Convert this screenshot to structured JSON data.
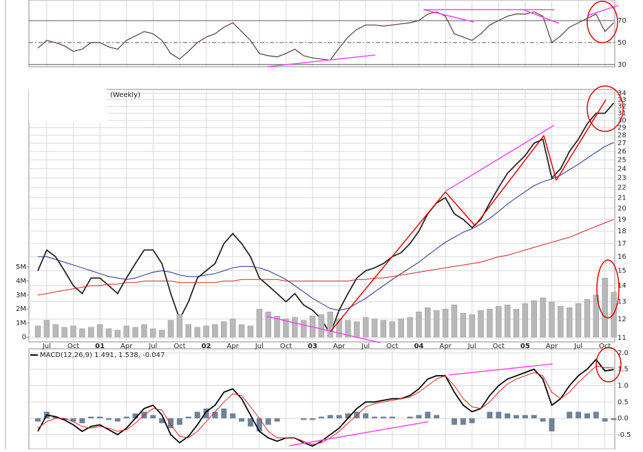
{
  "chart_data": [
    {
      "type": "line",
      "ylim": [
        28,
        88.75
      ],
      "yticks": [
        30,
        50,
        70
      ],
      "color": "#5a3535",
      "values": [
        45,
        52,
        50,
        47,
        42,
        44,
        50,
        50,
        46,
        44,
        52,
        56,
        60,
        58,
        52,
        40,
        35,
        42,
        50,
        55,
        58,
        64,
        68,
        60,
        52,
        40,
        38,
        37,
        40,
        44,
        38,
        36,
        35,
        34,
        45,
        55,
        62,
        66,
        66,
        65,
        66,
        67,
        68,
        70,
        76,
        78,
        74,
        58,
        55,
        52,
        58,
        66,
        70,
        74,
        76,
        76,
        78,
        74,
        50,
        56,
        64,
        68,
        72,
        76,
        60,
        68
      ]
    },
    {
      "type": "line",
      "log": true,
      "annotation": "(Weekly)",
      "ylim": [
        10.8,
        34.6
      ],
      "yticks": [
        11,
        12,
        13,
        14,
        15,
        16,
        17,
        18,
        19,
        20,
        21,
        22,
        23,
        24,
        25,
        26,
        27,
        28,
        29,
        30,
        31,
        32,
        33,
        34
      ],
      "categories": [
        null,
        "Jul",
        null,
        null,
        "Oct",
        null,
        null,
        "01",
        null,
        null,
        "Apr",
        null,
        null,
        "Jul",
        null,
        null,
        "Oct",
        null,
        null,
        "02",
        null,
        null,
        "Apr",
        null,
        null,
        "Jul",
        null,
        null,
        "Oct",
        null,
        null,
        "03",
        null,
        null,
        "Apr",
        null,
        null,
        "Jul",
        null,
        null,
        "Oct",
        null,
        null,
        "04",
        null,
        null,
        "Apr",
        null,
        null,
        "Jul",
        null,
        null,
        "Oct",
        null,
        null,
        "05",
        null,
        null,
        "Apr",
        null,
        null,
        "Jul",
        null,
        null,
        "Oct",
        null
      ],
      "series": [
        {
          "color": "#222222",
          "values": [
            15,
            16.5,
            16,
            15,
            14,
            13.5,
            14.5,
            14.5,
            14,
            13.5,
            14.5,
            15.5,
            16.5,
            16.5,
            15.5,
            13.5,
            12,
            13,
            14.5,
            15,
            15.5,
            17,
            17.8,
            17,
            16,
            14.5,
            14,
            13.5,
            13,
            13.5,
            12.8,
            12.5,
            12,
            11.2,
            12.5,
            13.5,
            14.5,
            15,
            15.2,
            15.5,
            16,
            16.3,
            17,
            18,
            19.5,
            20.5,
            21,
            19.5,
            19,
            18.3,
            19,
            20.5,
            22,
            23.5,
            24.5,
            25.5,
            27,
            27.5,
            23,
            24,
            26,
            27.5,
            29.5,
            31,
            31,
            32.5
          ]
        },
        {
          "color": "#1a2a8a",
          "values": [
            16,
            16,
            15.8,
            15.6,
            15.4,
            15.2,
            15,
            14.8,
            14.6,
            14.5,
            14.4,
            14.5,
            14.7,
            14.9,
            15,
            14.9,
            14.7,
            14.6,
            14.6,
            14.7,
            14.8,
            15,
            15.2,
            15.3,
            15.3,
            15.2,
            15,
            14.7,
            14.4,
            14,
            13.6,
            13.2,
            12.9,
            12.6,
            12.5,
            12.6,
            12.9,
            13.2,
            13.6,
            14,
            14.4,
            14.8,
            15.2,
            15.6,
            16.1,
            16.6,
            17.1,
            17.5,
            17.9,
            18.2,
            18.6,
            19.1,
            19.7,
            20.4,
            21,
            21.6,
            22.2,
            22.6,
            22.9,
            23.3,
            23.9,
            24.5,
            25.2,
            25.9,
            26.6,
            27.1
          ]
        },
        {
          "color": "#d42020",
          "values": [
            13.4,
            13.5,
            13.6,
            13.7,
            13.8,
            13.9,
            14,
            14,
            14.1,
            14.1,
            14.2,
            14.2,
            14.3,
            14.3,
            14.3,
            14.3,
            14.2,
            14.2,
            14.2,
            14.2,
            14.2,
            14.3,
            14.3,
            14.4,
            14.4,
            14.4,
            14.4,
            14.4,
            14.3,
            14.3,
            14.3,
            14.3,
            14.3,
            14.3,
            14.3,
            14.3,
            14.4,
            14.4,
            14.5,
            14.5,
            14.6,
            14.7,
            14.8,
            14.9,
            15,
            15.1,
            15.2,
            15.3,
            15.4,
            15.5,
            15.6,
            15.8,
            16,
            16.1,
            16.3,
            16.5,
            16.7,
            16.9,
            17.1,
            17.3,
            17.5,
            17.8,
            18.1,
            18.4,
            18.7,
            19
          ]
        }
      ]
    },
    {
      "type": "bar",
      "color": "#b8b8b8",
      "ylim": [
        0,
        5000000
      ],
      "yticks": [
        0,
        {
          "value": 1000000,
          "label": "1M"
        },
        {
          "value": 2000000,
          "label": "2M"
        },
        {
          "value": 3000000,
          "label": "3M"
        },
        {
          "value": 4000000,
          "label": "4M"
        },
        {
          "value": 5000000,
          "label": "5M"
        }
      ],
      "values": [
        800000,
        1200000,
        900000,
        700000,
        800000,
        600000,
        700000,
        900000,
        600000,
        500000,
        800000,
        700000,
        900000,
        600000,
        500000,
        1200000,
        1600000,
        900000,
        700000,
        800000,
        900000,
        1100000,
        1300000,
        900000,
        800000,
        2000000,
        1800000,
        1500000,
        1300000,
        1400000,
        1200000,
        1500000,
        1600000,
        1800000,
        1300000,
        1200000,
        1100000,
        1400000,
        1300000,
        1200000,
        1100000,
        1300000,
        1400000,
        1800000,
        2100000,
        1900000,
        2000000,
        2300000,
        1700000,
        1600000,
        1900000,
        2000000,
        2200000,
        2300000,
        2000000,
        2400000,
        2600000,
        2800000,
        2500000,
        2200000,
        2100000,
        2400000,
        2700000,
        3000000,
        4200000,
        3200000
      ]
    },
    {
      "type": "line",
      "title": "MACD(12,26,9) 1.491, 1.538, -0.047",
      "ylim": [
        -0.947,
        2.126
      ],
      "yticks": [
        {
          "value": -0.5,
          "label": "-0.5"
        },
        {
          "value": 0,
          "label": "0.0"
        },
        {
          "value": 0.5,
          "label": "0.5"
        },
        {
          "value": 1,
          "label": "1.0"
        },
        {
          "value": 1.5,
          "label": "1.5"
        },
        {
          "value": 2,
          "label": "2.0"
        }
      ],
      "series": [
        {
          "color": "#000000",
          "values": [
            -0.4,
            0.1,
            0.05,
            -0.05,
            -0.2,
            -0.4,
            -0.25,
            -0.2,
            -0.35,
            -0.5,
            -0.3,
            0,
            0.3,
            0.4,
            0.1,
            -0.5,
            -0.75,
            -0.55,
            -0.2,
            0.2,
            0.4,
            0.8,
            0.9,
            0.6,
            0.1,
            -0.4,
            -0.6,
            -0.7,
            -0.6,
            -0.6,
            -0.75,
            -0.85,
            -0.7,
            -0.5,
            -0.3,
            0,
            0.3,
            0.5,
            0.5,
            0.55,
            0.6,
            0.6,
            0.7,
            0.9,
            1.2,
            1.3,
            1.3,
            0.8,
            0.4,
            0.2,
            0.3,
            0.7,
            1.0,
            1.2,
            1.3,
            1.4,
            1.5,
            1.2,
            0.4,
            0.6,
            1.0,
            1.3,
            1.5,
            1.8,
            1.45,
            1.49
          ]
        },
        {
          "color": "#e02020",
          "values": [
            -0.3,
            -0.1,
            0,
            0,
            -0.1,
            -0.25,
            -0.3,
            -0.25,
            -0.3,
            -0.4,
            -0.35,
            -0.15,
            0.1,
            0.3,
            0.25,
            -0.2,
            -0.55,
            -0.6,
            -0.4,
            -0.1,
            0.2,
            0.5,
            0.75,
            0.7,
            0.35,
            0,
            -0.4,
            -0.6,
            -0.6,
            -0.6,
            -0.7,
            -0.8,
            -0.75,
            -0.6,
            -0.4,
            -0.15,
            0.1,
            0.35,
            0.45,
            0.5,
            0.55,
            0.6,
            0.65,
            0.8,
            1.0,
            1.2,
            1.3,
            1.0,
            0.6,
            0.35,
            0.3,
            0.5,
            0.8,
            1.05,
            1.2,
            1.3,
            1.4,
            1.3,
            0.8,
            0.6,
            0.8,
            1.1,
            1.35,
            1.6,
            1.55,
            1.54
          ]
        }
      ],
      "histogram": {
        "color": "#6f8299",
        "values": [
          -0.1,
          0.2,
          0.05,
          -0.05,
          -0.1,
          -0.15,
          0.05,
          0.05,
          -0.05,
          -0.1,
          0.05,
          0.15,
          0.2,
          0.1,
          -0.15,
          -0.3,
          -0.2,
          0.05,
          0.2,
          0.3,
          0.2,
          0.3,
          0.15,
          -0.1,
          -0.25,
          -0.4,
          -0.2,
          -0.1,
          0,
          0,
          -0.05,
          -0.05,
          0.05,
          0.1,
          0.1,
          0.15,
          0.2,
          0.15,
          0.05,
          0.05,
          0.05,
          0,
          0.05,
          0.1,
          0.2,
          0.1,
          0,
          -0.2,
          -0.2,
          -0.15,
          0,
          0.2,
          0.2,
          0.15,
          0.1,
          0.1,
          0.1,
          -0.1,
          -0.4,
          0,
          0.2,
          0.2,
          0.15,
          0.2,
          -0.1,
          -0.05
        ]
      }
    }
  ]
}
